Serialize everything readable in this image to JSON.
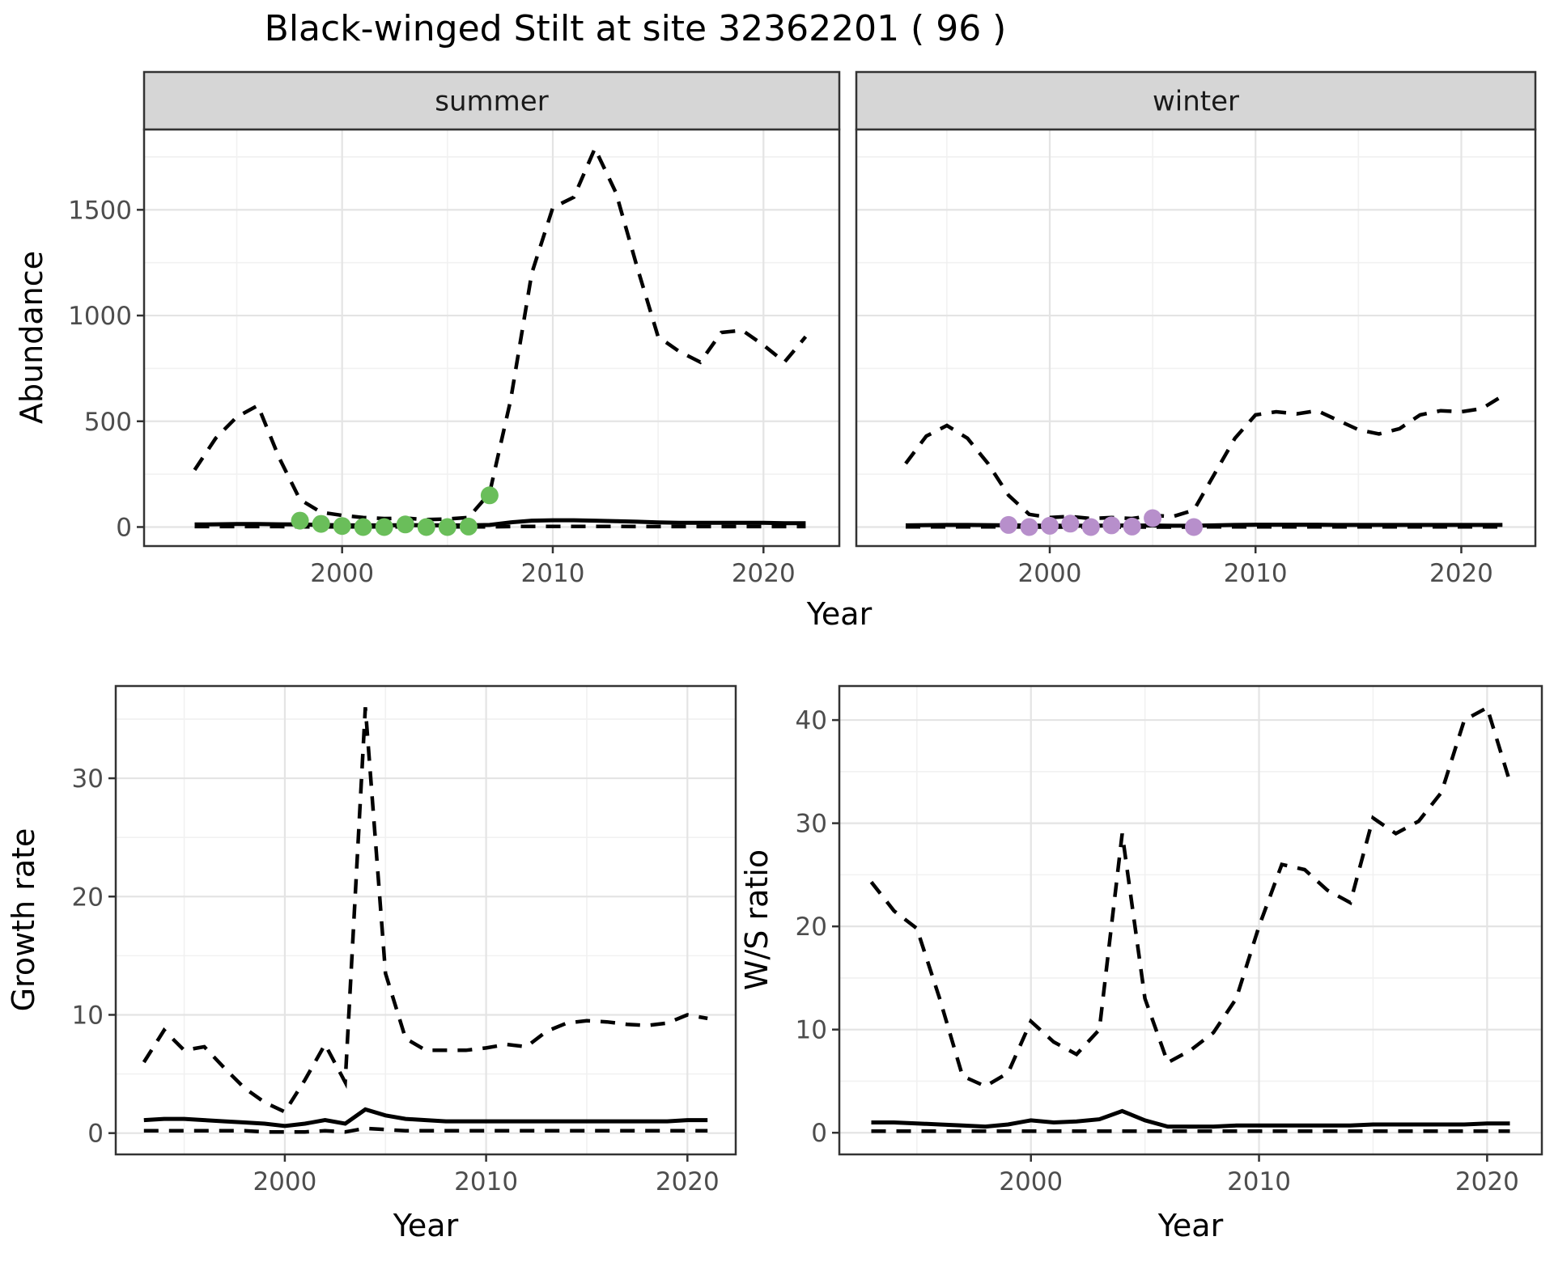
{
  "title": "Black-winged Stilt at site 32362201 ( 96 )",
  "chart_data": {
    "type": "line",
    "title": "Black-winged Stilt at site 32362201 ( 96 )",
    "style": {
      "line_color": "#000000",
      "strip_fill": "#d6d6d6",
      "strip_border": "#333333",
      "panel_border": "#333333",
      "grid_major": "#e4e4e4",
      "grid_minor": "#f1f1f1",
      "tick_color": "#333333",
      "tick_text_color": "#4d4d4d",
      "summer_point_color": "#6abe5a",
      "winter_point_color": "#b78fcb",
      "legend_position": "none",
      "grid": "on"
    },
    "charts": [
      {
        "id": "abundance",
        "ylabel": "Abundance",
        "xlabel": "Year",
        "xlim": [
          1990.6,
          2023.6
        ],
        "ylim": [
          -90,
          1880
        ],
        "yticks": [
          0,
          500,
          1000,
          1500
        ],
        "yticks_minor": [
          250,
          750,
          1250,
          1750
        ],
        "xticks": [
          2000,
          2010,
          2020
        ],
        "xticks_minor": [
          1995,
          2005,
          2015
        ],
        "years": [
          1993,
          1994,
          1995,
          1996,
          1997,
          1998,
          1999,
          2000,
          2001,
          2002,
          2003,
          2004,
          2005,
          2006,
          2007,
          2008,
          2009,
          2010,
          2011,
          2012,
          2013,
          2014,
          2015,
          2016,
          2017,
          2018,
          2019,
          2020,
          2021,
          2022
        ],
        "facets": [
          {
            "label": "summer",
            "series": [
              {
                "name": "upper_ci",
                "style": "dashed",
                "values": [
                  270,
                  420,
                  520,
                  575,
                  330,
                  130,
                  70,
                  55,
                  45,
                  40,
                  42,
                  35,
                  38,
                  45,
                  160,
                  600,
                  1200,
                  1510,
                  1560,
                  1790,
                  1580,
                  1230,
                  900,
                  830,
                  780,
                  920,
                  930,
                  860,
                  780,
                  900
                ]
              },
              {
                "name": "mean",
                "style": "solid",
                "values": [
                  12,
                  13,
                  14,
                  14,
                  13,
                  12,
                  10,
                  8,
                  8,
                  8,
                  9,
                  8,
                  8,
                  8,
                  10,
                  22,
                  30,
                  32,
                  32,
                  30,
                  28,
                  25,
                  22,
                  20,
                  20,
                  20,
                  20,
                  20,
                  18,
                  18
                ]
              },
              {
                "name": "lower_ci",
                "style": "dashed",
                "values": [
                  2,
                  2,
                  2,
                  2,
                  2,
                  1,
                  1,
                  1,
                  1,
                  1,
                  1,
                  1,
                  1,
                  1,
                  1,
                  2,
                  3,
                  3,
                  3,
                  3,
                  3,
                  2,
                  2,
                  2,
                  2,
                  2,
                  2,
                  2,
                  2,
                  2
                ]
              }
            ],
            "points": {
              "name": "observed-counts-summer",
              "color": "#6abe5a",
              "years": [
                1998,
                1999,
                2000,
                2001,
                2002,
                2003,
                2004,
                2005,
                2006,
                2007
              ],
              "values": [
                30,
                15,
                5,
                0,
                0,
                12,
                0,
                0,
                2,
                150
              ]
            }
          },
          {
            "label": "winter",
            "series": [
              {
                "name": "upper_ci",
                "style": "dashed",
                "values": [
                  300,
                  430,
                  480,
                  420,
                  300,
                  150,
                  60,
                  45,
                  50,
                  40,
                  45,
                  40,
                  55,
                  50,
                  80,
                  250,
                  420,
                  530,
                  545,
                  535,
                  550,
                  505,
                  460,
                  440,
                  465,
                  530,
                  550,
                  545,
                  560,
                  620
                ]
              },
              {
                "name": "mean",
                "style": "solid",
                "values": [
                  8,
                  9,
                  10,
                  10,
                  9,
                  8,
                  7,
                  6,
                  6,
                  6,
                  7,
                  7,
                  7,
                  6,
                  6,
                  8,
                  10,
                  11,
                  11,
                  11,
                  11,
                  10,
                  10,
                  10,
                  10,
                  10,
                  10,
                  10,
                  10,
                  10
                ]
              },
              {
                "name": "lower_ci",
                "style": "dashed",
                "values": [
                  1,
                  1,
                  1,
                  1,
                  1,
                  1,
                  0,
                  0,
                  0,
                  0,
                  0,
                  0,
                  0,
                  0,
                  0,
                  1,
                  1,
                  1,
                  1,
                  1,
                  1,
                  1,
                  1,
                  1,
                  1,
                  1,
                  1,
                  1,
                  1,
                  1
                ]
              }
            ],
            "points": {
              "name": "observed-counts-winter",
              "color": "#b78fcb",
              "years": [
                1998,
                1999,
                2000,
                2001,
                2002,
                2003,
                2004,
                2005,
                2007
              ],
              "values": [
                10,
                0,
                6,
                16,
                0,
                8,
                2,
                42,
                0
              ]
            }
          }
        ]
      },
      {
        "id": "growth_rate",
        "ylabel": "Growth rate",
        "xlabel": "Year",
        "xlim": [
          1991.6,
          2022.4
        ],
        "ylim": [
          -1.8,
          37.8
        ],
        "yticks": [
          0,
          10,
          20,
          30
        ],
        "yticks_minor": [
          5,
          15,
          25,
          35
        ],
        "xticks": [
          2000,
          2010,
          2020
        ],
        "xticks_minor": [
          1995,
          2005,
          2015
        ],
        "years": [
          1993,
          1994,
          1995,
          1996,
          1997,
          1998,
          1999,
          2000,
          2001,
          2002,
          2003,
          2004,
          2005,
          2006,
          2007,
          2008,
          2009,
          2010,
          2011,
          2012,
          2013,
          2014,
          2015,
          2016,
          2017,
          2018,
          2019,
          2020,
          2021
        ],
        "facets": [
          {
            "label": "",
            "series": [
              {
                "name": "upper_ci",
                "style": "dashed",
                "values": [
                  6.0,
                  8.7,
                  7.0,
                  7.3,
                  5.5,
                  3.8,
                  2.6,
                  1.8,
                  4.5,
                  7.5,
                  4.3,
                  36.0,
                  13.5,
                  8.0,
                  7.0,
                  7.0,
                  7.0,
                  7.2,
                  7.5,
                  7.3,
                  8.6,
                  9.3,
                  9.5,
                  9.4,
                  9.2,
                  9.1,
                  9.3,
                  10.0,
                  9.7
                ]
              },
              {
                "name": "mean",
                "style": "solid",
                "values": [
                  1.1,
                  1.2,
                  1.2,
                  1.1,
                  1.0,
                  0.9,
                  0.8,
                  0.6,
                  0.8,
                  1.1,
                  0.8,
                  2.0,
                  1.5,
                  1.2,
                  1.1,
                  1.0,
                  1.0,
                  1.0,
                  1.0,
                  1.0,
                  1.0,
                  1.0,
                  1.0,
                  1.0,
                  1.0,
                  1.0,
                  1.0,
                  1.1,
                  1.1
                ]
              },
              {
                "name": "lower_ci",
                "style": "dashed",
                "values": [
                  0.2,
                  0.2,
                  0.2,
                  0.2,
                  0.2,
                  0.2,
                  0.1,
                  0.1,
                  0.1,
                  0.2,
                  0.1,
                  0.4,
                  0.3,
                  0.2,
                  0.2,
                  0.2,
                  0.2,
                  0.2,
                  0.2,
                  0.2,
                  0.2,
                  0.2,
                  0.2,
                  0.2,
                  0.2,
                  0.2,
                  0.2,
                  0.2,
                  0.2
                ]
              }
            ]
          }
        ]
      },
      {
        "id": "ws_ratio",
        "ylabel": "W/S ratio",
        "xlabel": "Year",
        "xlim": [
          1991.6,
          2022.4
        ],
        "ylim": [
          -2.1,
          43.3
        ],
        "yticks": [
          0,
          10,
          20,
          30,
          40
        ],
        "yticks_minor": [
          5,
          15,
          25,
          35
        ],
        "xticks": [
          2000,
          2010,
          2020
        ],
        "xticks_minor": [
          1995,
          2005,
          2015
        ],
        "years": [
          1993,
          1994,
          1995,
          1996,
          1997,
          1998,
          1999,
          2000,
          2001,
          2002,
          2003,
          2004,
          2005,
          2006,
          2007,
          2008,
          2009,
          2010,
          2011,
          2012,
          2013,
          2014,
          2015,
          2016,
          2017,
          2018,
          2019,
          2020,
          2021
        ],
        "facets": [
          {
            "label": "",
            "series": [
              {
                "name": "upper_ci",
                "style": "dashed",
                "values": [
                  24.3,
                  21.5,
                  19.8,
                  13.0,
                  5.5,
                  4.5,
                  5.8,
                  10.8,
                  8.8,
                  7.6,
                  10.0,
                  29.0,
                  13.0,
                  6.8,
                  8.0,
                  9.7,
                  13.0,
                  20.0,
                  26.0,
                  25.5,
                  23.5,
                  22.3,
                  30.5,
                  29.0,
                  30.2,
                  33.0,
                  40.0,
                  41.2,
                  34.0
                ]
              },
              {
                "name": "mean",
                "style": "solid",
                "values": [
                  1.0,
                  1.0,
                  0.9,
                  0.8,
                  0.7,
                  0.6,
                  0.8,
                  1.2,
                  1.0,
                  1.1,
                  1.3,
                  2.1,
                  1.2,
                  0.6,
                  0.6,
                  0.6,
                  0.7,
                  0.7,
                  0.7,
                  0.7,
                  0.7,
                  0.7,
                  0.8,
                  0.8,
                  0.8,
                  0.8,
                  0.8,
                  0.9,
                  0.9
                ]
              },
              {
                "name": "lower_ci",
                "style": "dashed",
                "values": [
                  0.15,
                  0.15,
                  0.15,
                  0.15,
                  0.15,
                  0.15,
                  0.15,
                  0.15,
                  0.15,
                  0.15,
                  0.15,
                  0.15,
                  0.15,
                  0.15,
                  0.15,
                  0.15,
                  0.15,
                  0.15,
                  0.15,
                  0.15,
                  0.15,
                  0.15,
                  0.15,
                  0.15,
                  0.15,
                  0.15,
                  0.15,
                  0.15,
                  0.15
                ]
              }
            ]
          }
        ]
      }
    ]
  }
}
